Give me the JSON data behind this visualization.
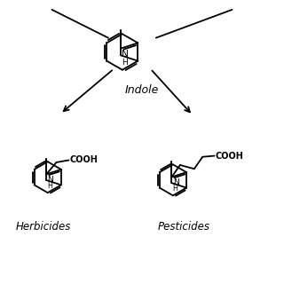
{
  "background_color": "#ffffff",
  "text_color": "#000000",
  "title": "Indole",
  "label_herbicides": "Herbicides",
  "label_pesticides": "Pesticides",
  "figsize": [
    3.2,
    3.2
  ],
  "dpi": 100
}
